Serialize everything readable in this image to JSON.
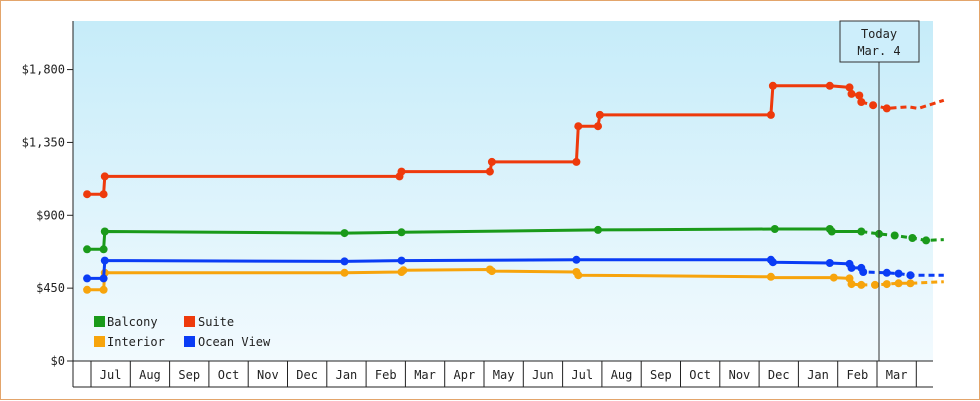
{
  "chart_data": {
    "type": "line",
    "title": "",
    "xlabel": "",
    "ylabel": "",
    "y_ticks": [
      "$0",
      "$450",
      "$900",
      "$1,350",
      "$1,800"
    ],
    "ylim": [
      0,
      2100
    ],
    "months": [
      "Jul",
      "Aug",
      "Sep",
      "Oct",
      "Nov",
      "Dec",
      "Jan",
      "Feb",
      "Mar",
      "Apr",
      "May",
      "Jun",
      "Jul",
      "Aug",
      "Sep",
      "Oct",
      "Nov",
      "Dec",
      "Jan",
      "Feb",
      "Mar"
    ],
    "x_range_months": [
      -0.6,
      20.55
    ],
    "today": {
      "line1": "Today",
      "line2": "Mar. 4",
      "x_month": 19.1
    },
    "legend": {
      "position": "bottom-left",
      "grid": false
    },
    "series": [
      {
        "name": "Balcony",
        "color": "#1a9a1a",
        "points": [
          [
            -0.6,
            690
          ],
          [
            -0.18,
            690
          ],
          [
            -0.15,
            800
          ],
          [
            5.95,
            790
          ],
          [
            7.4,
            795
          ],
          [
            12.4,
            810
          ],
          [
            16.9,
            815
          ],
          [
            18.3,
            815
          ],
          [
            18.35,
            800
          ],
          [
            19.1,
            800
          ],
          [
            19.55,
            785
          ],
          [
            19.95,
            775
          ],
          [
            20.4,
            760
          ],
          [
            20.75,
            745
          ],
          [
            21.2,
            750
          ]
        ],
        "markers": [
          [
            -0.6,
            690
          ],
          [
            -0.18,
            690
          ],
          [
            -0.15,
            800
          ],
          [
            5.95,
            790
          ],
          [
            7.4,
            795
          ],
          [
            12.4,
            810
          ],
          [
            16.9,
            815
          ],
          [
            18.3,
            815
          ],
          [
            18.35,
            800
          ],
          [
            19.1,
            800
          ],
          [
            19.55,
            785
          ],
          [
            19.95,
            775
          ],
          [
            20.4,
            760
          ],
          [
            20.75,
            745
          ]
        ]
      },
      {
        "name": "Suite",
        "color": "#ee3a0c",
        "points": [
          [
            -0.6,
            1030
          ],
          [
            -0.18,
            1030
          ],
          [
            -0.15,
            1140
          ],
          [
            7.35,
            1140
          ],
          [
            7.4,
            1170
          ],
          [
            9.65,
            1170
          ],
          [
            9.7,
            1230
          ],
          [
            11.85,
            1230
          ],
          [
            11.9,
            1450
          ],
          [
            12.4,
            1450
          ],
          [
            12.45,
            1520
          ],
          [
            16.8,
            1520
          ],
          [
            16.85,
            1700
          ],
          [
            18.3,
            1700
          ],
          [
            18.8,
            1690
          ],
          [
            18.85,
            1650
          ],
          [
            19.05,
            1640
          ],
          [
            19.1,
            1600
          ],
          [
            19.4,
            1580
          ],
          [
            19.75,
            1560
          ],
          [
            20.3,
            1570
          ],
          [
            20.55,
            1560
          ],
          [
            21.2,
            1610
          ]
        ],
        "markers": [
          [
            -0.6,
            1030
          ],
          [
            -0.18,
            1030
          ],
          [
            -0.15,
            1140
          ],
          [
            7.35,
            1140
          ],
          [
            7.4,
            1170
          ],
          [
            9.65,
            1170
          ],
          [
            9.7,
            1230
          ],
          [
            11.85,
            1230
          ],
          [
            11.9,
            1450
          ],
          [
            12.4,
            1450
          ],
          [
            12.45,
            1520
          ],
          [
            16.8,
            1520
          ],
          [
            16.85,
            1700
          ],
          [
            18.3,
            1700
          ],
          [
            18.8,
            1690
          ],
          [
            18.85,
            1650
          ],
          [
            19.05,
            1640
          ],
          [
            19.1,
            1600
          ],
          [
            19.4,
            1580
          ],
          [
            19.75,
            1560
          ]
        ]
      },
      {
        "name": "Interior",
        "color": "#f7a40c",
        "points": [
          [
            -0.6,
            440
          ],
          [
            -0.18,
            440
          ],
          [
            -0.15,
            545
          ],
          [
            5.95,
            545
          ],
          [
            7.4,
            550
          ],
          [
            7.45,
            560
          ],
          [
            9.65,
            565
          ],
          [
            9.7,
            555
          ],
          [
            11.85,
            550
          ],
          [
            11.9,
            530
          ],
          [
            16.8,
            520
          ],
          [
            16.85,
            515
          ],
          [
            18.4,
            515
          ],
          [
            18.8,
            510
          ],
          [
            18.85,
            475
          ],
          [
            19.1,
            470
          ],
          [
            19.45,
            470
          ],
          [
            19.75,
            475
          ],
          [
            20.05,
            480
          ],
          [
            20.35,
            480
          ],
          [
            21.2,
            490
          ]
        ],
        "markers": [
          [
            -0.6,
            440
          ],
          [
            -0.18,
            440
          ],
          [
            -0.15,
            545
          ],
          [
            5.95,
            545
          ],
          [
            7.4,
            550
          ],
          [
            7.45,
            560
          ],
          [
            9.65,
            565
          ],
          [
            9.7,
            555
          ],
          [
            11.85,
            550
          ],
          [
            11.9,
            530
          ],
          [
            16.8,
            520
          ],
          [
            18.4,
            515
          ],
          [
            18.8,
            510
          ],
          [
            18.85,
            475
          ],
          [
            19.1,
            470
          ],
          [
            19.45,
            470
          ],
          [
            19.75,
            475
          ],
          [
            20.05,
            480
          ],
          [
            20.35,
            480
          ]
        ]
      },
      {
        "name": "Ocean View",
        "color": "#0a3cf5",
        "points": [
          [
            -0.6,
            510
          ],
          [
            -0.18,
            510
          ],
          [
            -0.15,
            620
          ],
          [
            5.95,
            615
          ],
          [
            7.4,
            620
          ],
          [
            11.85,
            625
          ],
          [
            16.8,
            625
          ],
          [
            16.85,
            610
          ],
          [
            18.3,
            605
          ],
          [
            18.8,
            600
          ],
          [
            18.85,
            575
          ],
          [
            19.1,
            575
          ],
          [
            19.15,
            550
          ],
          [
            19.75,
            545
          ],
          [
            20.05,
            540
          ],
          [
            20.35,
            530
          ],
          [
            21.2,
            530
          ]
        ],
        "markers": [
          [
            -0.6,
            510
          ],
          [
            -0.18,
            510
          ],
          [
            -0.15,
            620
          ],
          [
            5.95,
            615
          ],
          [
            7.4,
            620
          ],
          [
            11.85,
            625
          ],
          [
            16.8,
            625
          ],
          [
            16.85,
            610
          ],
          [
            18.3,
            605
          ],
          [
            18.8,
            600
          ],
          [
            18.85,
            575
          ],
          [
            19.1,
            575
          ],
          [
            19.15,
            550
          ],
          [
            19.75,
            545
          ],
          [
            20.05,
            540
          ],
          [
            20.35,
            530
          ]
        ]
      }
    ]
  }
}
